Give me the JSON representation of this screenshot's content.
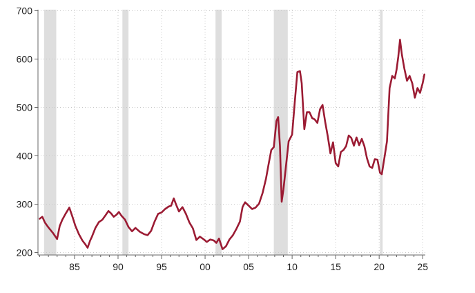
{
  "chart_data": {
    "type": "line",
    "title": "",
    "xlabel": "",
    "ylabel": "",
    "xlim": [
      1980.8,
      2025.3
    ],
    "ylim": [
      195,
      702
    ],
    "grid": true,
    "legend": "none",
    "x_ticks": [
      {
        "value": 1985,
        "label": "85"
      },
      {
        "value": 1990,
        "label": "90"
      },
      {
        "value": 1995,
        "label": "95"
      },
      {
        "value": 2000,
        "label": "00"
      },
      {
        "value": 2005,
        "label": "05"
      },
      {
        "value": 2010,
        "label": "10"
      },
      {
        "value": 2015,
        "label": "15"
      },
      {
        "value": 2020,
        "label": "20"
      },
      {
        "value": 2025,
        "label": "25"
      }
    ],
    "y_ticks": [
      {
        "value": 200,
        "label": "200"
      },
      {
        "value": 300,
        "label": "300"
      },
      {
        "value": 400,
        "label": "400"
      },
      {
        "value": 500,
        "label": "500"
      },
      {
        "value": 600,
        "label": "600"
      },
      {
        "value": 700,
        "label": "700"
      }
    ],
    "shaded_periods": [
      [
        1981.5,
        1982.9
      ],
      [
        1990.5,
        1991.2
      ],
      [
        2001.2,
        2001.9
      ],
      [
        2007.9,
        2009.5
      ],
      [
        2020.1,
        2020.4
      ]
    ],
    "series": [
      {
        "color": "#9b1b33",
        "x": [
          1981.0,
          1981.3,
          1981.6,
          1982.0,
          1982.5,
          1983.0,
          1983.3,
          1983.6,
          1984.0,
          1984.4,
          1984.8,
          1985.1,
          1985.5,
          1985.9,
          1986.2,
          1986.5,
          1986.8,
          1987.0,
          1987.4,
          1987.8,
          1988.2,
          1988.6,
          1988.9,
          1989.2,
          1989.5,
          1989.8,
          1990.1,
          1990.4,
          1990.8,
          1991.2,
          1991.6,
          1992.0,
          1992.5,
          1993.0,
          1993.4,
          1993.8,
          1994.2,
          1994.6,
          1995.0,
          1995.4,
          1995.8,
          1996.1,
          1996.4,
          1996.7,
          1997.0,
          1997.4,
          1997.8,
          1998.2,
          1998.6,
          1999.0,
          1999.4,
          1999.8,
          2000.2,
          2000.6,
          2001.0,
          2001.3,
          2001.6,
          2002.0,
          2002.4,
          2002.8,
          2003.2,
          2003.6,
          2004.0,
          2004.3,
          2004.6,
          2005.0,
          2005.4,
          2005.8,
          2006.2,
          2006.6,
          2007.0,
          2007.3,
          2007.6,
          2007.9,
          2008.2,
          2008.4,
          2008.6,
          2008.8,
          2009.0,
          2009.3,
          2009.6,
          2010.0,
          2010.3,
          2010.6,
          2010.9,
          2011.1,
          2011.4,
          2011.7,
          2012.0,
          2012.3,
          2012.6,
          2012.9,
          2013.2,
          2013.5,
          2013.8,
          2014.1,
          2014.4,
          2014.7,
          2015.0,
          2015.3,
          2015.6,
          2015.9,
          2016.2,
          2016.5,
          2016.8,
          2017.1,
          2017.4,
          2017.7,
          2018.0,
          2018.3,
          2018.6,
          2018.9,
          2019.2,
          2019.5,
          2019.8,
          2020.1,
          2020.3,
          2020.6,
          2020.9,
          2021.2,
          2021.5,
          2021.8,
          2022.0,
          2022.2,
          2022.4,
          2022.6,
          2022.9,
          2023.2,
          2023.5,
          2023.8,
          2024.1,
          2024.4,
          2024.7,
          2025.0,
          2025.2
        ],
        "y": [
          270,
          274,
          262,
          252,
          241,
          228,
          255,
          268,
          281,
          293,
          272,
          255,
          238,
          225,
          218,
          210,
          225,
          233,
          251,
          263,
          268,
          278,
          286,
          281,
          274,
          278,
          284,
          276,
          268,
          253,
          244,
          251,
          243,
          238,
          236,
          245,
          264,
          280,
          283,
          290,
          295,
          297,
          312,
          298,
          285,
          294,
          280,
          262,
          250,
          226,
          233,
          228,
          222,
          227,
          225,
          220,
          229,
          207,
          213,
          227,
          236,
          249,
          264,
          294,
          304,
          297,
          290,
          293,
          301,
          323,
          353,
          383,
          412,
          418,
          472,
          480,
          420,
          305,
          330,
          380,
          430,
          444,
          510,
          573,
          575,
          550,
          455,
          490,
          490,
          478,
          475,
          468,
          496,
          505,
          470,
          440,
          405,
          428,
          385,
          378,
          408,
          412,
          420,
          442,
          437,
          421,
          438,
          422,
          435,
          420,
          395,
          378,
          375,
          393,
          392,
          365,
          362,
          395,
          430,
          540,
          565,
          560,
          578,
          605,
          640,
          610,
          580,
          555,
          565,
          550,
          520,
          540,
          530,
          550,
          568
        ]
      }
    ]
  }
}
